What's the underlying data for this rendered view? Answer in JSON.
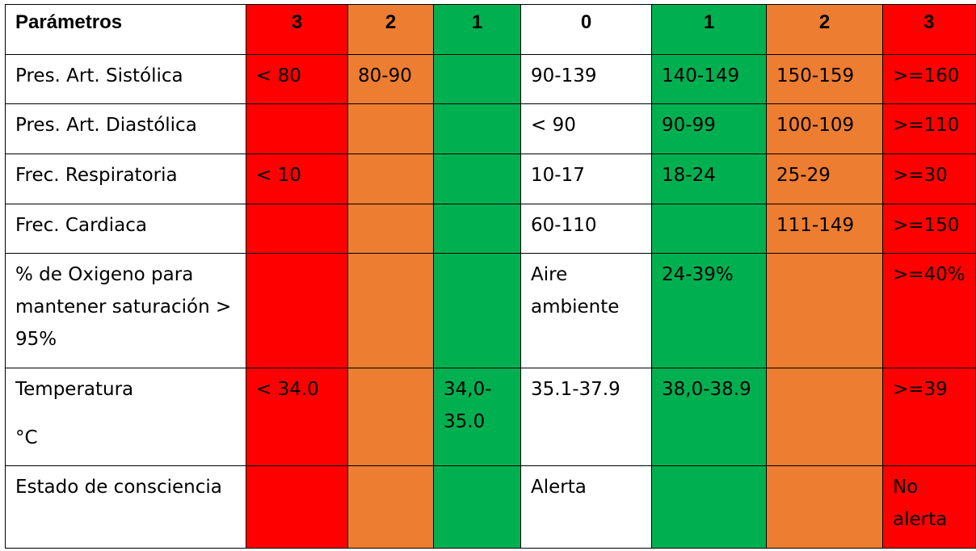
{
  "table": {
    "header": {
      "parameter": "Parámetros",
      "columns": [
        "3",
        "2",
        "1",
        "0",
        "1",
        "2",
        "3"
      ]
    },
    "column_colors": [
      "#ff0000",
      "#ed7d31",
      "#00b050",
      "#ffffff",
      "#00b050",
      "#ed7d31",
      "#ff0000"
    ],
    "rows": [
      {
        "parameter": "Pres. Art. Sistólica",
        "cells": [
          "< 80",
          "80-90",
          "",
          "90-139",
          "140-149",
          "150-159",
          ">=160"
        ]
      },
      {
        "parameter": "Pres. Art. Diastólica",
        "cells": [
          "",
          "",
          "",
          "< 90",
          "90-99",
          "100-109",
          ">=110"
        ]
      },
      {
        "parameter": "Frec. Respiratoria",
        "cells": [
          "< 10",
          "",
          "",
          "10-17",
          "18-24",
          "25-29",
          ">=30"
        ]
      },
      {
        "parameter": "Frec. Cardiaca",
        "cells": [
          "",
          "",
          "",
          "60-110",
          "",
          "111-149",
          ">=150"
        ]
      },
      {
        "parameter": "% de Oxigeno para mantener saturación > 95%",
        "cells": [
          "",
          "",
          "",
          "Aire ambiente",
          "24-39%",
          "",
          ">=40%"
        ]
      },
      {
        "parameter": "Temperatura",
        "parameter_unit": "°C",
        "cells": [
          "< 34.0",
          "",
          "34,0-35.0",
          "35.1-37.9",
          "38,0-38.9",
          "",
          ">=39"
        ]
      },
      {
        "parameter": "Estado de consciencia",
        "cells": [
          "",
          "",
          "",
          "Alerta",
          "",
          "",
          "No alerta"
        ]
      }
    ]
  }
}
